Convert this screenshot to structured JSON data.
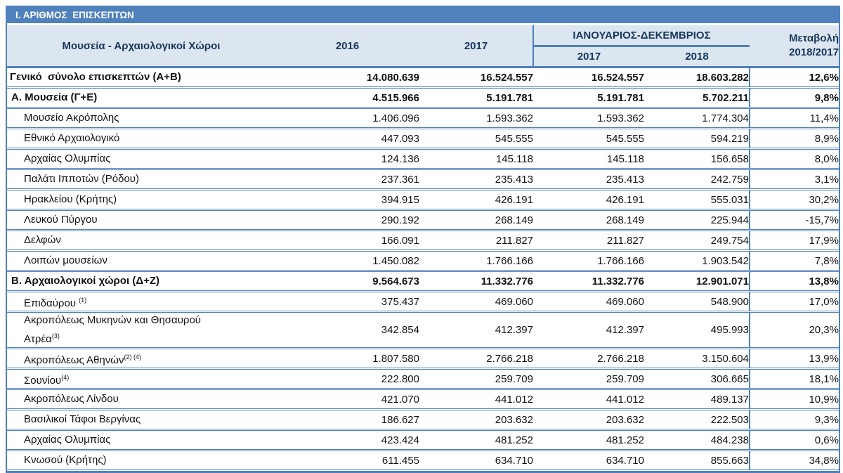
{
  "banner": {
    "title": "Ι. ΑΡΙΘΜΟΣ  ΕΠΙΣΚΕΠΤΩΝ"
  },
  "colors": {
    "accent": "#4f81bd",
    "header_bg": "#dce6f1",
    "shade_bg": "#dce6f1",
    "banner_text": "#ffffff"
  },
  "table": {
    "columns": {
      "name": "Μουσεία - Αρχαιολογικοί Χώροι",
      "y2016": "2016",
      "y2017": "2017",
      "group": "ΙΑΝΟΥΑΡΙΟΣ-ΔΕΚΕΜΒΡΙΟΣ",
      "jd2017": "2017",
      "jd2018": "2018",
      "change_line1": "Μεταβολή",
      "change_line2": "2018/2017"
    },
    "rows": [
      {
        "label": "Γενικό  σύνολο επισκεπτών (Α+Β)",
        "style": "total",
        "values": [
          "14.080.639",
          "16.524.557",
          "16.524.557",
          "18.603.282",
          "12,6%"
        ]
      },
      {
        "label": "Α. Μουσεία (Γ+Ε)",
        "style": "section",
        "values": [
          "4.515.966",
          "5.191.781",
          "5.191.781",
          "5.702.211",
          "9,8%"
        ]
      },
      {
        "label": "Μουσείο Ακρόπολης",
        "style": "item",
        "values": [
          "1.406.096",
          "1.593.362",
          "1.593.362",
          "1.774.304",
          "11,4%"
        ]
      },
      {
        "label": "Εθνικό Αρχαιολογικό",
        "style": "item",
        "values": [
          "447.093",
          "545.555",
          "545.555",
          "594.219",
          "8,9%"
        ]
      },
      {
        "label": "Αρχαίας Ολυμπίας",
        "style": "item",
        "values": [
          "124.136",
          "145.118",
          "145.118",
          "156.658",
          "8,0%"
        ]
      },
      {
        "label": "Παλάτι Ιπποτών (Ρόδου)",
        "style": "item",
        "values": [
          "237.361",
          "235.413",
          "235.413",
          "242.759",
          "3,1%"
        ]
      },
      {
        "label": "Ηρακλείου (Κρήτης)",
        "style": "item",
        "values": [
          "394.915",
          "426.191",
          "426.191",
          "555.031",
          "30,2%"
        ]
      },
      {
        "label": "Λευκού Πύργου",
        "style": "item",
        "values": [
          "290.192",
          "268.149",
          "268.149",
          "225.944",
          "-15,7%"
        ]
      },
      {
        "label": "Δελφών",
        "style": "item",
        "values": [
          "166.091",
          "211.827",
          "211.827",
          "249.754",
          "17,9%"
        ]
      },
      {
        "label": "Λοιπών μουσείων",
        "style": "item",
        "values": [
          "1.450.082",
          "1.766.166",
          "1.766.166",
          "1.903.542",
          "7,8%"
        ]
      },
      {
        "label": "Β. Αρχαιολογικοί χώροι (Δ+Ζ)",
        "style": "section",
        "values": [
          "9.564.673",
          "11.332.776",
          "11.332.776",
          "12.901.071",
          "13,8%"
        ]
      },
      {
        "label": "Επιδαύρου ",
        "sup": "(1)",
        "style": "item",
        "values": [
          "375.437",
          "469.060",
          "469.060",
          "548.900",
          "17,0%"
        ]
      },
      {
        "label": "Ακροπόλεως Μυκηνών και Θησαυρού",
        "label2": "Ατρέα",
        "sup2": "(3)",
        "style": "item",
        "tall": true,
        "values": [
          "342.854",
          "412.397",
          "412.397",
          "495.993",
          "20,3%"
        ]
      },
      {
        "label": "Ακροπόλεως Αθηνών",
        "sup": "(2) (4)",
        "style": "item",
        "values": [
          "1.807.580",
          "2.766.218",
          "2.766.218",
          "3.150.604",
          "13,9%"
        ]
      },
      {
        "label": "Σουνίου",
        "sup": "(4)",
        "style": "item",
        "values": [
          "222.800",
          "259.709",
          "259.709",
          "306.665",
          "18,1%"
        ]
      },
      {
        "label": "Ακροπόλεως Λίνδου",
        "style": "item",
        "values": [
          "421.070",
          "441.012",
          "441.012",
          "489.137",
          "10,9%"
        ]
      },
      {
        "label": "Βασιλικοί Τάφοι Βεργίνας",
        "style": "item",
        "values": [
          "186.627",
          "203.632",
          "203.632",
          "222.503",
          "9,3%"
        ]
      },
      {
        "label": "Αρχαίας Ολυμπίας",
        "style": "item",
        "values": [
          "423.424",
          "481.252",
          "481.252",
          "484.238",
          "0,6%"
        ]
      },
      {
        "label": "Κνωσού (Κρήτης)",
        "style": "item",
        "values": [
          "611.455",
          "634.710",
          "634.710",
          "855.663",
          "34,8%"
        ]
      }
    ]
  }
}
